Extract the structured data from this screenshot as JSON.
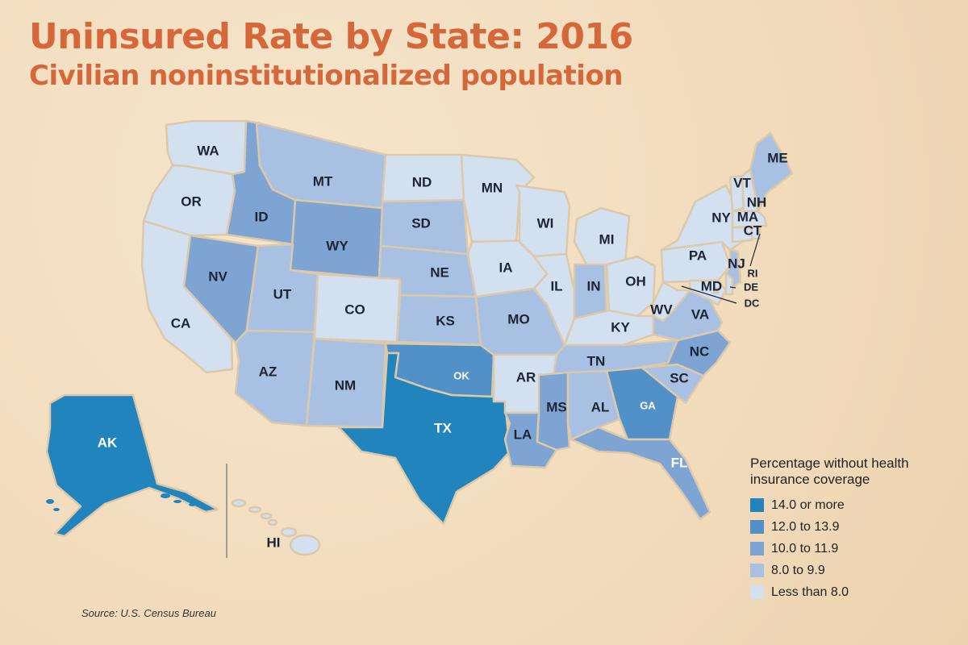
{
  "title": "Uninsured Rate by State: 2016",
  "subtitle": "Civilian noninstitutionalized population",
  "source": "Source: U.S. Census Bureau",
  "colors": {
    "c5": "#2184bd",
    "c4": "#5291c8",
    "c3": "#7ea4d4",
    "c2": "#a8c0e1",
    "c1": "#d3e0f0",
    "dark_label": "#1d2433",
    "light_label": "#ffffff"
  },
  "legend": {
    "title_lines": [
      "Percentage without health",
      "insurance coverage"
    ],
    "items": [
      {
        "label": "14.0 or more",
        "color": "#2184bd"
      },
      {
        "label": "12.0 to 13.9",
        "color": "#5291c8"
      },
      {
        "label": "10.0 to 11.9",
        "color": "#7ea4d4"
      },
      {
        "label": "8.0 to 9.9",
        "color": "#a8c0e1"
      },
      {
        "label": "Less than 8.0",
        "color": "#d3e0f0"
      }
    ]
  },
  "states": [
    {
      "abbr": "WA",
      "bin": "Less than 8.0"
    },
    {
      "abbr": "OR",
      "bin": "Less than 8.0"
    },
    {
      "abbr": "CA",
      "bin": "Less than 8.0"
    },
    {
      "abbr": "ID",
      "bin": "10.0 to 11.9"
    },
    {
      "abbr": "NV",
      "bin": "10.0 to 11.9"
    },
    {
      "abbr": "MT",
      "bin": "8.0 to 9.9"
    },
    {
      "abbr": "WY",
      "bin": "10.0 to 11.9"
    },
    {
      "abbr": "UT",
      "bin": "8.0 to 9.9"
    },
    {
      "abbr": "AZ",
      "bin": "8.0 to 9.9"
    },
    {
      "abbr": "CO",
      "bin": "Less than 8.0"
    },
    {
      "abbr": "NM",
      "bin": "8.0 to 9.9"
    },
    {
      "abbr": "ND",
      "bin": "Less than 8.0"
    },
    {
      "abbr": "SD",
      "bin": "8.0 to 9.9"
    },
    {
      "abbr": "NE",
      "bin": "8.0 to 9.9"
    },
    {
      "abbr": "KS",
      "bin": "8.0 to 9.9"
    },
    {
      "abbr": "OK",
      "bin": "12.0 to 13.9"
    },
    {
      "abbr": "TX",
      "bin": "14.0 or more"
    },
    {
      "abbr": "MN",
      "bin": "Less than 8.0"
    },
    {
      "abbr": "IA",
      "bin": "Less than 8.0"
    },
    {
      "abbr": "MO",
      "bin": "8.0 to 9.9"
    },
    {
      "abbr": "AR",
      "bin": "Less than 8.0"
    },
    {
      "abbr": "LA",
      "bin": "10.0 to 11.9"
    },
    {
      "abbr": "WI",
      "bin": "Less than 8.0"
    },
    {
      "abbr": "IL",
      "bin": "Less than 8.0"
    },
    {
      "abbr": "MI",
      "bin": "Less than 8.0"
    },
    {
      "abbr": "IN",
      "bin": "8.0 to 9.9"
    },
    {
      "abbr": "OH",
      "bin": "Less than 8.0"
    },
    {
      "abbr": "KY",
      "bin": "Less than 8.0"
    },
    {
      "abbr": "TN",
      "bin": "8.0 to 9.9"
    },
    {
      "abbr": "MS",
      "bin": "10.0 to 11.9"
    },
    {
      "abbr": "AL",
      "bin": "8.0 to 9.9"
    },
    {
      "abbr": "GA",
      "bin": "12.0 to 13.9"
    },
    {
      "abbr": "FL",
      "bin": "10.0 to 11.9"
    },
    {
      "abbr": "SC",
      "bin": "8.0 to 9.9"
    },
    {
      "abbr": "NC",
      "bin": "10.0 to 11.9"
    },
    {
      "abbr": "VA",
      "bin": "8.0 to 9.9"
    },
    {
      "abbr": "WV",
      "bin": "Less than 8.0"
    },
    {
      "abbr": "PA",
      "bin": "Less than 8.0"
    },
    {
      "abbr": "NY",
      "bin": "Less than 8.0"
    },
    {
      "abbr": "NJ",
      "bin": "8.0 to 9.9"
    },
    {
      "abbr": "MD",
      "bin": "Less than 8.0"
    },
    {
      "abbr": "DE",
      "bin": "Less than 8.0"
    },
    {
      "abbr": "DC",
      "bin": "Less than 8.0"
    },
    {
      "abbr": "VT",
      "bin": "Less than 8.0"
    },
    {
      "abbr": "NH",
      "bin": "Less than 8.0"
    },
    {
      "abbr": "MA",
      "bin": "Less than 8.0"
    },
    {
      "abbr": "CT",
      "bin": "Less than 8.0"
    },
    {
      "abbr": "RI",
      "bin": "Less than 8.0"
    },
    {
      "abbr": "ME",
      "bin": "8.0 to 9.9"
    },
    {
      "abbr": "AK",
      "bin": "14.0 or more"
    },
    {
      "abbr": "HI",
      "bin": "Less than 8.0"
    }
  ]
}
